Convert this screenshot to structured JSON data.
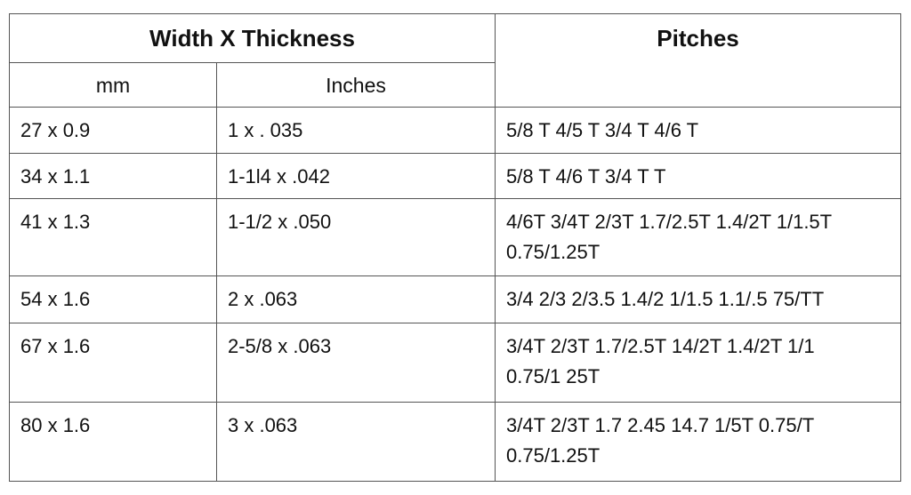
{
  "header": {
    "group_label": "Width X Thickness",
    "pitches_label": "Pitches",
    "mm_label": "mm",
    "inches_label": "Inches"
  },
  "rows": [
    {
      "mm": "27 x 0.9",
      "inches": "1 x . 035",
      "pitches": [
        "5/8 T 4/5 T 3/4 T 4/6 T"
      ]
    },
    {
      "mm": "34 x 1.1",
      "inches": "1-1l4 x .042",
      "pitches": [
        "5/8 T 4/6 T 3/4 T T"
      ]
    },
    {
      "mm": "41 x 1.3",
      "inches": "1-1/2 x .050",
      "pitches": [
        "4/6T 3/4T 2/3T 1.7/2.5T 1.4/2T 1/1.5T",
        "0.75/1.25T"
      ]
    },
    {
      "mm": "54 x 1.6",
      "inches": "2 x .063",
      "pitches": [
        "3/4 2/3 2/3.5 1.4/2 1/1.5 1.1/.5 75/TT"
      ]
    },
    {
      "mm": "67 x 1.6",
      "inches": "2-5/8 x .063",
      "pitches": [
        "3/4T 2/3T 1.7/2.5T 14/2T 1.4/2T 1/1",
        "0.75/1 25T"
      ]
    },
    {
      "mm": "80 x 1.6",
      "inches": "3 x .063",
      "pitches": [
        "3/4T 2/3T 1.7 2.45 14.7 1/5T 0.75/T",
        "0.75/1.25T"
      ]
    }
  ]
}
